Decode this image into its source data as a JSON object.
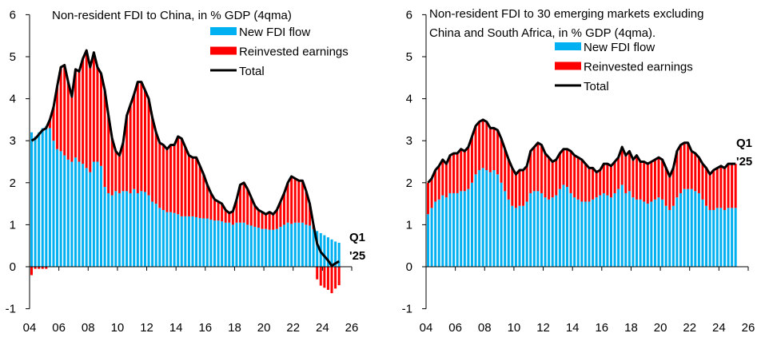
{
  "colors": {
    "new_fdi": "#00B0F0",
    "reinvested": "#FF0000",
    "total": "#000000"
  },
  "chart_data": [
    {
      "type": "bar",
      "stacked": true,
      "title": "Non-resident FDI to China, in % GDP (4qma)",
      "title_lines": [
        "Non-resident FDI to China, in % GDP (4qma)"
      ],
      "x_start": "2004Q1",
      "x_end": "2025Q1",
      "frequency": "quarterly",
      "xlim": [
        2004,
        2026
      ],
      "ylim": [
        -1,
        6
      ],
      "yticks": [
        "-1",
        "0",
        "1",
        "2",
        "3",
        "4",
        "5",
        "6"
      ],
      "xticks": [
        "04",
        "06",
        "08",
        "10",
        "12",
        "14",
        "16",
        "18",
        "20",
        "22",
        "24",
        "26"
      ],
      "legend": [
        "New FDI flow",
        "Reinvested earnings",
        "Total"
      ],
      "legend_position": "top-right",
      "annotation": [
        "Q1",
        "'25"
      ],
      "series": [
        {
          "name": "New FDI flow",
          "type": "bar",
          "values": [
            3.2,
            3.1,
            3.2,
            3.3,
            3.35,
            3.3,
            3.0,
            2.8,
            2.75,
            2.65,
            2.55,
            2.5,
            2.6,
            2.5,
            2.45,
            2.35,
            2.25,
            2.5,
            2.5,
            2.4,
            1.9,
            1.75,
            1.7,
            1.8,
            1.75,
            1.8,
            1.8,
            1.75,
            1.85,
            1.75,
            1.8,
            1.78,
            1.7,
            1.55,
            1.5,
            1.4,
            1.35,
            1.3,
            1.3,
            1.28,
            1.25,
            1.2,
            1.2,
            1.2,
            1.2,
            1.18,
            1.16,
            1.15,
            1.15,
            1.12,
            1.1,
            1.1,
            1.08,
            1.05,
            1.05,
            1.0,
            1.05,
            1.05,
            1.05,
            1.0,
            0.98,
            0.95,
            0.93,
            0.9,
            0.9,
            0.88,
            0.88,
            0.9,
            0.95,
            1.0,
            1.05,
            1.02,
            1.05,
            1.05,
            1.05,
            1.0,
            0.98,
            0.9,
            0.85,
            0.8,
            0.75,
            0.7,
            0.65,
            0.6,
            0.57
          ]
        },
        {
          "name": "Reinvested earnings",
          "type": "bar",
          "derived": "Total minus New FDI flow"
        },
        {
          "name": "Total",
          "type": "line",
          "values": [
            3.0,
            3.05,
            3.15,
            3.25,
            3.3,
            3.5,
            3.8,
            4.3,
            4.75,
            4.8,
            4.4,
            4.05,
            4.7,
            4.65,
            4.95,
            5.15,
            4.75,
            5.1,
            4.75,
            4.6,
            4.2,
            3.6,
            3.05,
            2.75,
            2.65,
            2.95,
            3.6,
            3.85,
            4.1,
            4.4,
            4.4,
            4.2,
            4.0,
            3.55,
            3.2,
            2.95,
            2.9,
            2.8,
            2.9,
            2.9,
            3.1,
            3.05,
            2.85,
            2.65,
            2.6,
            2.6,
            2.4,
            2.2,
            1.95,
            1.75,
            1.6,
            1.55,
            1.5,
            1.35,
            1.28,
            1.32,
            1.6,
            1.95,
            2.0,
            1.85,
            1.65,
            1.45,
            1.35,
            1.3,
            1.25,
            1.3,
            1.25,
            1.35,
            1.55,
            1.75,
            2.0,
            2.15,
            2.1,
            2.05,
            2.05,
            1.8,
            1.5,
            1.0,
            0.55,
            0.35,
            0.25,
            0.15,
            0.02,
            0.08,
            0.13
          ]
        }
      ]
    },
    {
      "type": "bar",
      "stacked": true,
      "title": "Non-resident FDI to 30 emerging markets excluding China and South Africa, in % GDP (4qma).",
      "title_lines": [
        "Non-resident FDI to 30 emerging markets excluding",
        "China and South Africa, in % GDP (4qma)."
      ],
      "x_start": "2004Q1",
      "x_end": "2025Q1",
      "frequency": "quarterly",
      "xlim": [
        2004,
        2026
      ],
      "ylim": [
        -1,
        6
      ],
      "yticks": [
        "-1",
        "0",
        "1",
        "2",
        "3",
        "4",
        "5",
        "6"
      ],
      "xticks": [
        "04",
        "06",
        "08",
        "10",
        "12",
        "14",
        "16",
        "18",
        "20",
        "22",
        "24",
        "26"
      ],
      "legend": [
        "New FDI flow",
        "Reinvested earnings",
        "Total"
      ],
      "legend_position": "top-right",
      "annotation": [
        "Q1",
        "'25"
      ],
      "series": [
        {
          "name": "New FDI flow",
          "type": "bar",
          "values": [
            1.25,
            1.4,
            1.55,
            1.6,
            1.7,
            1.65,
            1.75,
            1.75,
            1.75,
            1.8,
            1.8,
            1.85,
            2.0,
            2.2,
            2.3,
            2.35,
            2.3,
            2.25,
            2.3,
            2.2,
            2.0,
            1.8,
            1.6,
            1.45,
            1.4,
            1.45,
            1.45,
            1.55,
            1.75,
            1.8,
            1.8,
            1.75,
            1.65,
            1.6,
            1.65,
            1.7,
            1.85,
            1.95,
            1.9,
            1.75,
            1.65,
            1.6,
            1.55,
            1.55,
            1.55,
            1.6,
            1.65,
            1.7,
            1.75,
            1.7,
            1.65,
            1.75,
            1.85,
            1.95,
            1.75,
            1.8,
            1.65,
            1.6,
            1.6,
            1.55,
            1.5,
            1.55,
            1.6,
            1.65,
            1.6,
            1.45,
            1.35,
            1.45,
            1.65,
            1.75,
            1.85,
            1.85,
            1.85,
            1.8,
            1.75,
            1.6,
            1.45,
            1.35,
            1.35,
            1.4,
            1.4,
            1.35,
            1.4,
            1.4,
            1.4
          ]
        },
        {
          "name": "Reinvested earnings",
          "type": "bar",
          "derived": "Total minus New FDI flow"
        },
        {
          "name": "Total",
          "type": "line",
          "values": [
            2.0,
            2.1,
            2.3,
            2.4,
            2.55,
            2.45,
            2.65,
            2.7,
            2.7,
            2.8,
            2.75,
            2.85,
            3.1,
            3.35,
            3.45,
            3.5,
            3.45,
            3.3,
            3.3,
            3.25,
            3.05,
            2.8,
            2.55,
            2.35,
            2.2,
            2.3,
            2.3,
            2.4,
            2.75,
            2.85,
            2.95,
            2.9,
            2.7,
            2.6,
            2.5,
            2.55,
            2.7,
            2.8,
            2.8,
            2.75,
            2.65,
            2.6,
            2.55,
            2.45,
            2.35,
            2.35,
            2.25,
            2.3,
            2.45,
            2.45,
            2.4,
            2.5,
            2.6,
            2.85,
            2.65,
            2.75,
            2.55,
            2.65,
            2.5,
            2.5,
            2.45,
            2.5,
            2.55,
            2.6,
            2.55,
            2.35,
            2.15,
            2.35,
            2.75,
            2.9,
            2.95,
            2.95,
            2.75,
            2.7,
            2.6,
            2.45,
            2.35,
            2.2,
            2.3,
            2.35,
            2.4,
            2.35,
            2.45,
            2.45,
            2.45
          ]
        }
      ]
    }
  ]
}
